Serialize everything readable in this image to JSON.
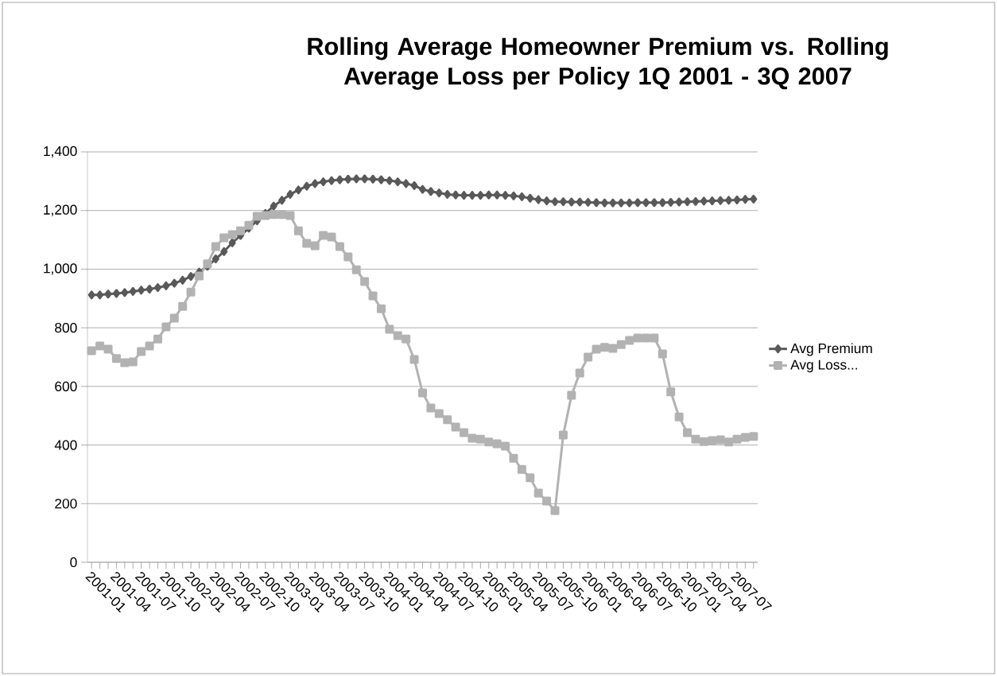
{
  "chart_data": {
    "type": "line",
    "title": "Rolling Average Homeowner Premium vs. Rolling Average Loss per Policy 1Q 2001 - 3Q 2007",
    "categories": [
      "2001-01",
      null,
      null,
      "2001-04",
      null,
      null,
      "2001-07",
      null,
      null,
      "2001-10",
      null,
      null,
      "2002-01",
      null,
      null,
      "2002-04",
      null,
      null,
      "2002-07",
      null,
      null,
      "2002-10",
      null,
      null,
      "2003-01",
      null,
      null,
      "2003-04",
      null,
      null,
      "2003-07",
      null,
      null,
      "2003-10",
      null,
      null,
      "2004-01",
      null,
      null,
      "2004-04",
      null,
      null,
      "2004-07",
      null,
      null,
      "2004-10",
      null,
      null,
      "2005-01",
      null,
      null,
      "2005-04",
      null,
      null,
      "2005-07",
      null,
      null,
      "2005-10",
      null,
      null,
      "2006-01",
      null,
      null,
      "2006-04",
      null,
      null,
      "2006-07",
      null,
      null,
      "2006-10",
      null,
      null,
      "2007-01",
      null,
      null,
      "2007-04",
      null,
      null,
      "2007-07",
      null,
      null
    ],
    "series": [
      {
        "name": "Avg Premium",
        "color": "#595959",
        "marker": "diamond",
        "values": [
          912,
          912,
          915,
          917,
          920,
          924,
          928,
          932,
          937,
          943,
          952,
          962,
          975,
          990,
          1010,
          1035,
          1060,
          1090,
          1115,
          1140,
          1165,
          1190,
          1215,
          1235,
          1255,
          1270,
          1283,
          1292,
          1298,
          1302,
          1305,
          1307,
          1308,
          1308,
          1307,
          1305,
          1302,
          1298,
          1292,
          1285,
          1272,
          1265,
          1260,
          1255,
          1253,
          1252,
          1252,
          1252,
          1253,
          1253,
          1252,
          1250,
          1247,
          1242,
          1237,
          1233,
          1230,
          1230,
          1229,
          1229,
          1228,
          1227,
          1226,
          1226,
          1226,
          1226,
          1227,
          1227,
          1227,
          1227,
          1228,
          1229,
          1230,
          1231,
          1232,
          1233,
          1234,
          1235,
          1236,
          1238,
          1239
        ]
      },
      {
        "name": "Avg Loss...",
        "color": "#b2b2b2",
        "marker": "square",
        "values": [
          722,
          738,
          727,
          695,
          681,
          684,
          719,
          738,
          762,
          803,
          833,
          873,
          922,
          977,
          1018,
          1077,
          1107,
          1118,
          1131,
          1150,
          1180,
          1183,
          1186,
          1186,
          1183,
          1131,
          1088,
          1080,
          1115,
          1110,
          1077,
          1042,
          998,
          958,
          909,
          865,
          795,
          773,
          762,
          692,
          578,
          526,
          507,
          486,
          461,
          442,
          423,
          420,
          410,
          404,
          396,
          355,
          317,
          288,
          236,
          209,
          176,
          434,
          570,
          646,
          700,
          727,
          733,
          730,
          743,
          757,
          765,
          765,
          765,
          711,
          581,
          496,
          442,
          420,
          412,
          415,
          418,
          410,
          420,
          426,
          429
        ]
      }
    ],
    "ylim": [
      0,
      1400
    ],
    "yticks": [
      0,
      200,
      400,
      600,
      800,
      {
        "value": 1000,
        "label": "1,000"
      },
      {
        "value": 1200,
        "label": "1,200"
      },
      {
        "value": 1400,
        "label": "1,400"
      }
    ],
    "grid": "y",
    "legend": "right",
    "line_style": "solid"
  }
}
